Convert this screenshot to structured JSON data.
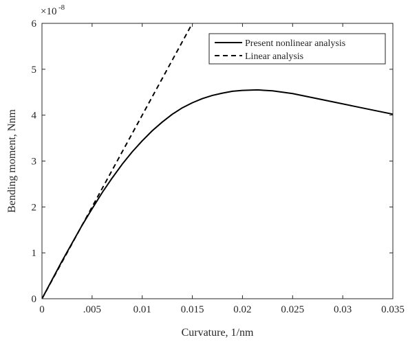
{
  "chart_data": {
    "type": "line",
    "title": "",
    "xlabel": "Curvature, 1/nm",
    "ylabel": "Bending moment, Nnm",
    "xlim": [
      0,
      0.035
    ],
    "ylim": [
      0,
      6
    ],
    "y_exponent_label": "×10",
    "y_exponent": "-8",
    "xticks": [
      0,
      0.005,
      0.01,
      0.015,
      0.02,
      0.025,
      0.03,
      0.035
    ],
    "xtick_labels": [
      "0",
      ".005",
      "0.01",
      "0.015",
      "0.02",
      "0.025",
      "0.03",
      "0.035"
    ],
    "yticks": [
      0,
      1,
      2,
      3,
      4,
      5,
      6
    ],
    "ytick_labels": [
      "0",
      "1",
      "2",
      "3",
      "4",
      "5",
      "6"
    ],
    "grid": false,
    "legend_position": "top-right",
    "series": [
      {
        "name": "Present nonlinear analysis",
        "style": "solid",
        "color": "#000000",
        "x": [
          0,
          0.001,
          0.002,
          0.003,
          0.004,
          0.005,
          0.006,
          0.007,
          0.008,
          0.009,
          0.01,
          0.011,
          0.012,
          0.013,
          0.014,
          0.015,
          0.016,
          0.017,
          0.018,
          0.019,
          0.02,
          0.0215,
          0.023,
          0.025,
          0.027,
          0.029,
          0.031,
          0.033,
          0.035
        ],
        "y": [
          0,
          0.41,
          0.82,
          1.21,
          1.6,
          1.96,
          2.31,
          2.63,
          2.93,
          3.2,
          3.44,
          3.66,
          3.85,
          4.02,
          4.16,
          4.27,
          4.36,
          4.43,
          4.48,
          4.52,
          4.54,
          4.55,
          4.53,
          4.47,
          4.38,
          4.29,
          4.2,
          4.11,
          4.02
        ]
      },
      {
        "name": "Linear analysis",
        "style": "dashed",
        "color": "#000000",
        "x": [
          0,
          0.015
        ],
        "y": [
          0,
          6.0
        ]
      }
    ]
  }
}
